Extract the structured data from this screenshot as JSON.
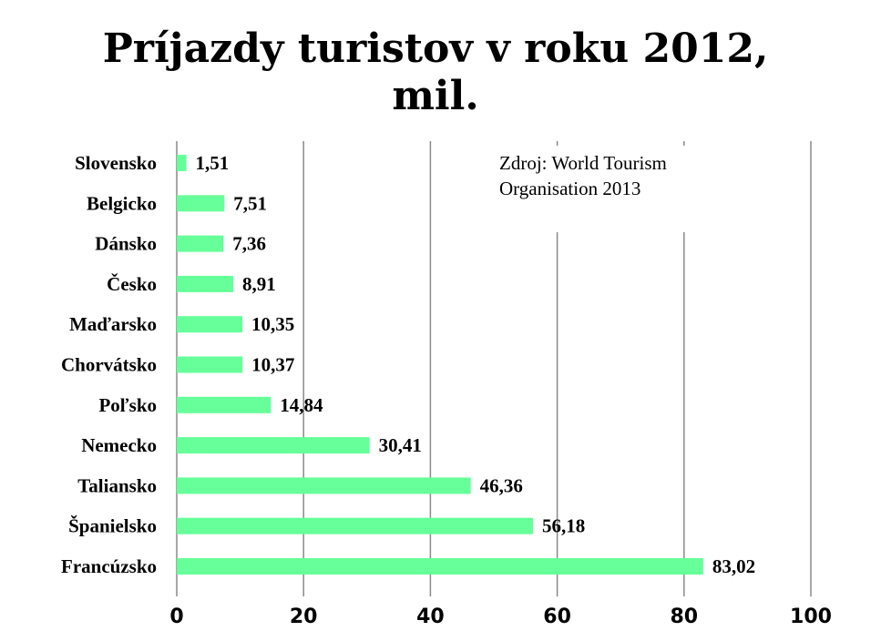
{
  "title": {
    "line1": "Príjazdy turistov v roku 2012,",
    "line2": "mil."
  },
  "source": {
    "line1": "Zdroj: World Tourism",
    "line2": "Organisation 2013"
  },
  "colors": {
    "bar": "#66ff99",
    "grid": "#8a8a8a",
    "text": "#000000"
  },
  "chart_data": {
    "type": "bar",
    "orientation": "horizontal",
    "categories": [
      "Slovensko",
      "Belgicko",
      "Dánsko",
      "Česko",
      "Maďarsko",
      "Chorvátsko",
      "Poľsko",
      "Nemecko",
      "Taliansko",
      "Španielsko",
      "Francúzsko"
    ],
    "values": [
      1.51,
      7.51,
      7.36,
      8.91,
      10.35,
      10.37,
      14.84,
      30.41,
      46.36,
      56.18,
      83.02
    ],
    "value_labels": [
      "1,51",
      "7,51",
      "7,36",
      "8,91",
      "10,35",
      "10,37",
      "14,84",
      "30,41",
      "46,36",
      "56,18",
      "83,02"
    ],
    "title": "Príjazdy turistov v roku 2012, mil.",
    "xlim": [
      0,
      100
    ],
    "xticks": [
      0,
      20,
      40,
      60,
      80,
      100
    ],
    "grid": true
  }
}
